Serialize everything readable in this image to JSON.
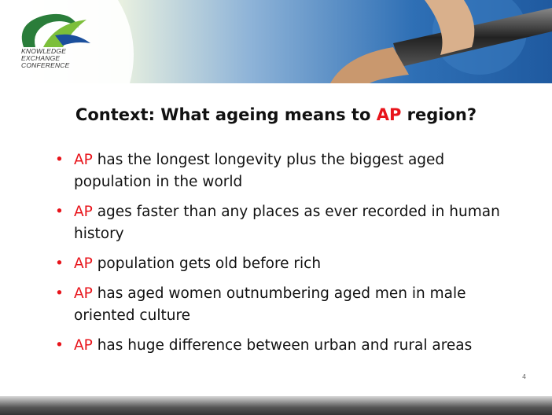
{
  "header": {
    "logo_lines": [
      "KNOWLEDGE",
      "EXCHANGE",
      "CONFERENCE"
    ]
  },
  "title": {
    "before": "Context: What ageing means to ",
    "highlight": "AP",
    "after": " region?"
  },
  "bullets": [
    {
      "highlight": "AP",
      "text": " has the longest longevity plus the biggest aged population in the world"
    },
    {
      "highlight": "AP",
      "text": " ages faster than any places as ever recorded in human history"
    },
    {
      "highlight": "AP",
      "text": " population gets old before rich"
    },
    {
      "highlight": "AP",
      "text": " has aged women outnumbering aged men in male oriented culture"
    },
    {
      "highlight": "AP",
      "text": " has huge difference between urban and rural areas"
    }
  ],
  "page_number": "4"
}
